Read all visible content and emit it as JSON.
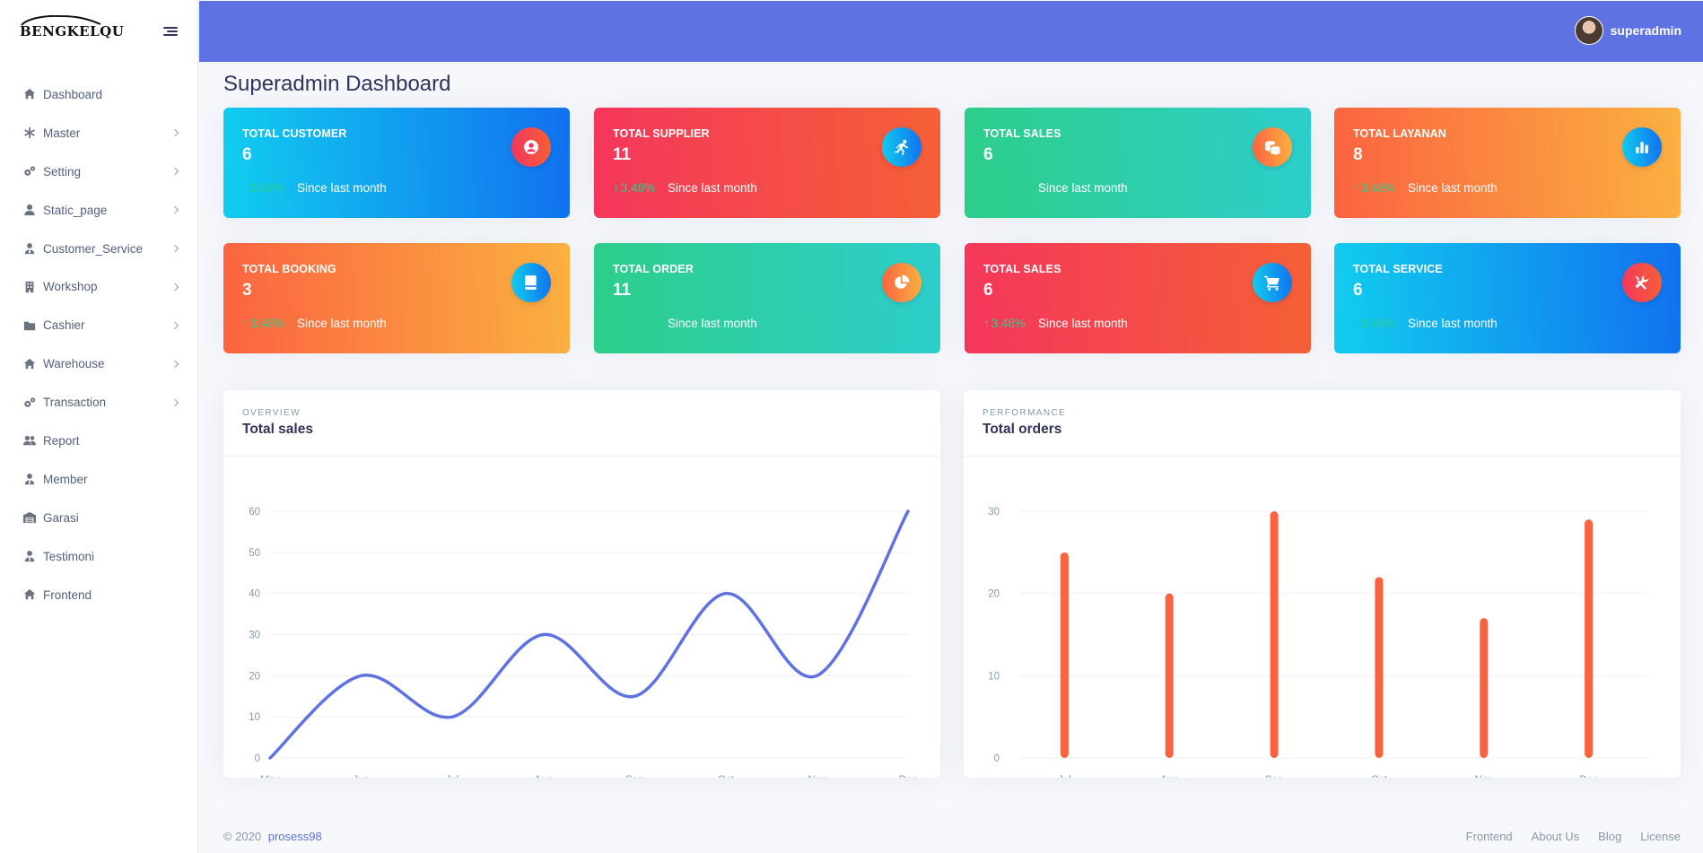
{
  "brand": {
    "name": "BENGKELQU"
  },
  "user": {
    "name": "superadmin"
  },
  "page_title": "Superadmin Dashboard",
  "sidebar": {
    "items": [
      {
        "label": "Dashboard",
        "icon": "home-icon",
        "chevron": false
      },
      {
        "label": "Master",
        "icon": "asterisk-icon",
        "chevron": true
      },
      {
        "label": "Setting",
        "icon": "gears-icon",
        "chevron": true
      },
      {
        "label": "Static_page",
        "icon": "user-icon",
        "chevron": true
      },
      {
        "label": "Customer_Service",
        "icon": "user-tie-icon",
        "chevron": true
      },
      {
        "label": "Workshop",
        "icon": "building-icon",
        "chevron": true
      },
      {
        "label": "Cashier",
        "icon": "folder-icon",
        "chevron": true
      },
      {
        "label": "Warehouse",
        "icon": "home-icon",
        "chevron": true
      },
      {
        "label": "Transaction",
        "icon": "gears-icon",
        "chevron": true
      },
      {
        "label": "Report",
        "icon": "users-icon",
        "chevron": false
      },
      {
        "label": "Member",
        "icon": "user-tie-icon",
        "chevron": false
      },
      {
        "label": "Garasi",
        "icon": "warehouse-icon",
        "chevron": false
      },
      {
        "label": "Testimoni",
        "icon": "user-tie-icon",
        "chevron": false
      },
      {
        "label": "Frontend",
        "icon": "home-icon",
        "chevron": false
      }
    ]
  },
  "stats": [
    {
      "title": "Total Customer",
      "value": "6",
      "pct": "3.48%",
      "since": "Since last month",
      "icon": "user-circle-icon",
      "gradient": "info",
      "icon_bg": "danger"
    },
    {
      "title": "Total Supplier",
      "value": "11",
      "pct": "3.48%",
      "since": "Since last month",
      "icon": "running-icon",
      "gradient": "danger",
      "icon_bg": "info"
    },
    {
      "title": "Total Sales",
      "value": "6",
      "pct": "",
      "since": "Since last month",
      "icon": "coins-icon",
      "gradient": "success",
      "icon_bg": "warning"
    },
    {
      "title": "Total Layanan",
      "value": "8",
      "pct": "3.48%",
      "since": "Since last month",
      "icon": "bar-chart-icon",
      "gradient": "warning",
      "icon_bg": "info"
    },
    {
      "title": "Total Booking",
      "value": "3",
      "pct": "3.48%",
      "since": "Since last month",
      "icon": "book-icon",
      "gradient": "warning",
      "icon_bg": "info"
    },
    {
      "title": "Total Order",
      "value": "11",
      "pct": "",
      "since": "Since last month",
      "icon": "pie-chart-icon",
      "gradient": "success",
      "icon_bg": "warning"
    },
    {
      "title": "Total Sales",
      "value": "6",
      "pct": "3.48%",
      "since": "Since last month",
      "icon": "cart-icon",
      "gradient": "danger",
      "icon_bg": "info"
    },
    {
      "title": "Total Service",
      "value": "6",
      "pct": "3.48%",
      "since": "Since last month",
      "icon": "tools-icon",
      "gradient": "info",
      "icon_bg": "danger"
    }
  ],
  "sales_panel": {
    "overline": "Overview",
    "title": "Total sales"
  },
  "orders_panel": {
    "overline": "Performance",
    "title": "Total orders"
  },
  "colors": {
    "primary": "#5e72e4",
    "bar": "#fb6340",
    "pct_green": "#2dce89"
  },
  "chart_data": [
    {
      "type": "line",
      "title": "Total sales",
      "categories": [
        "May",
        "Jun",
        "Jul",
        "Aug",
        "Sep",
        "Oct",
        "Nov",
        "Dec"
      ],
      "values": [
        0,
        20,
        10,
        30,
        15,
        40,
        20,
        60
      ],
      "ylim": [
        0,
        60
      ],
      "yticks": [
        0,
        10,
        20,
        30,
        40,
        50,
        60
      ],
      "grid": true,
      "color": "#5e72e4"
    },
    {
      "type": "bar",
      "title": "Total orders",
      "categories": [
        "Jul",
        "Aug",
        "Sep",
        "Oct",
        "Nov",
        "Dec"
      ],
      "values": [
        25,
        20,
        30,
        22,
        17,
        29
      ],
      "ylim": [
        0,
        30
      ],
      "yticks": [
        0,
        10,
        20,
        30
      ],
      "grid": true,
      "color": "#fb6340"
    }
  ],
  "footer": {
    "copyright": "© 2020",
    "author": "prosess98",
    "links": [
      "Frontend",
      "About Us",
      "Blog",
      "License"
    ]
  }
}
